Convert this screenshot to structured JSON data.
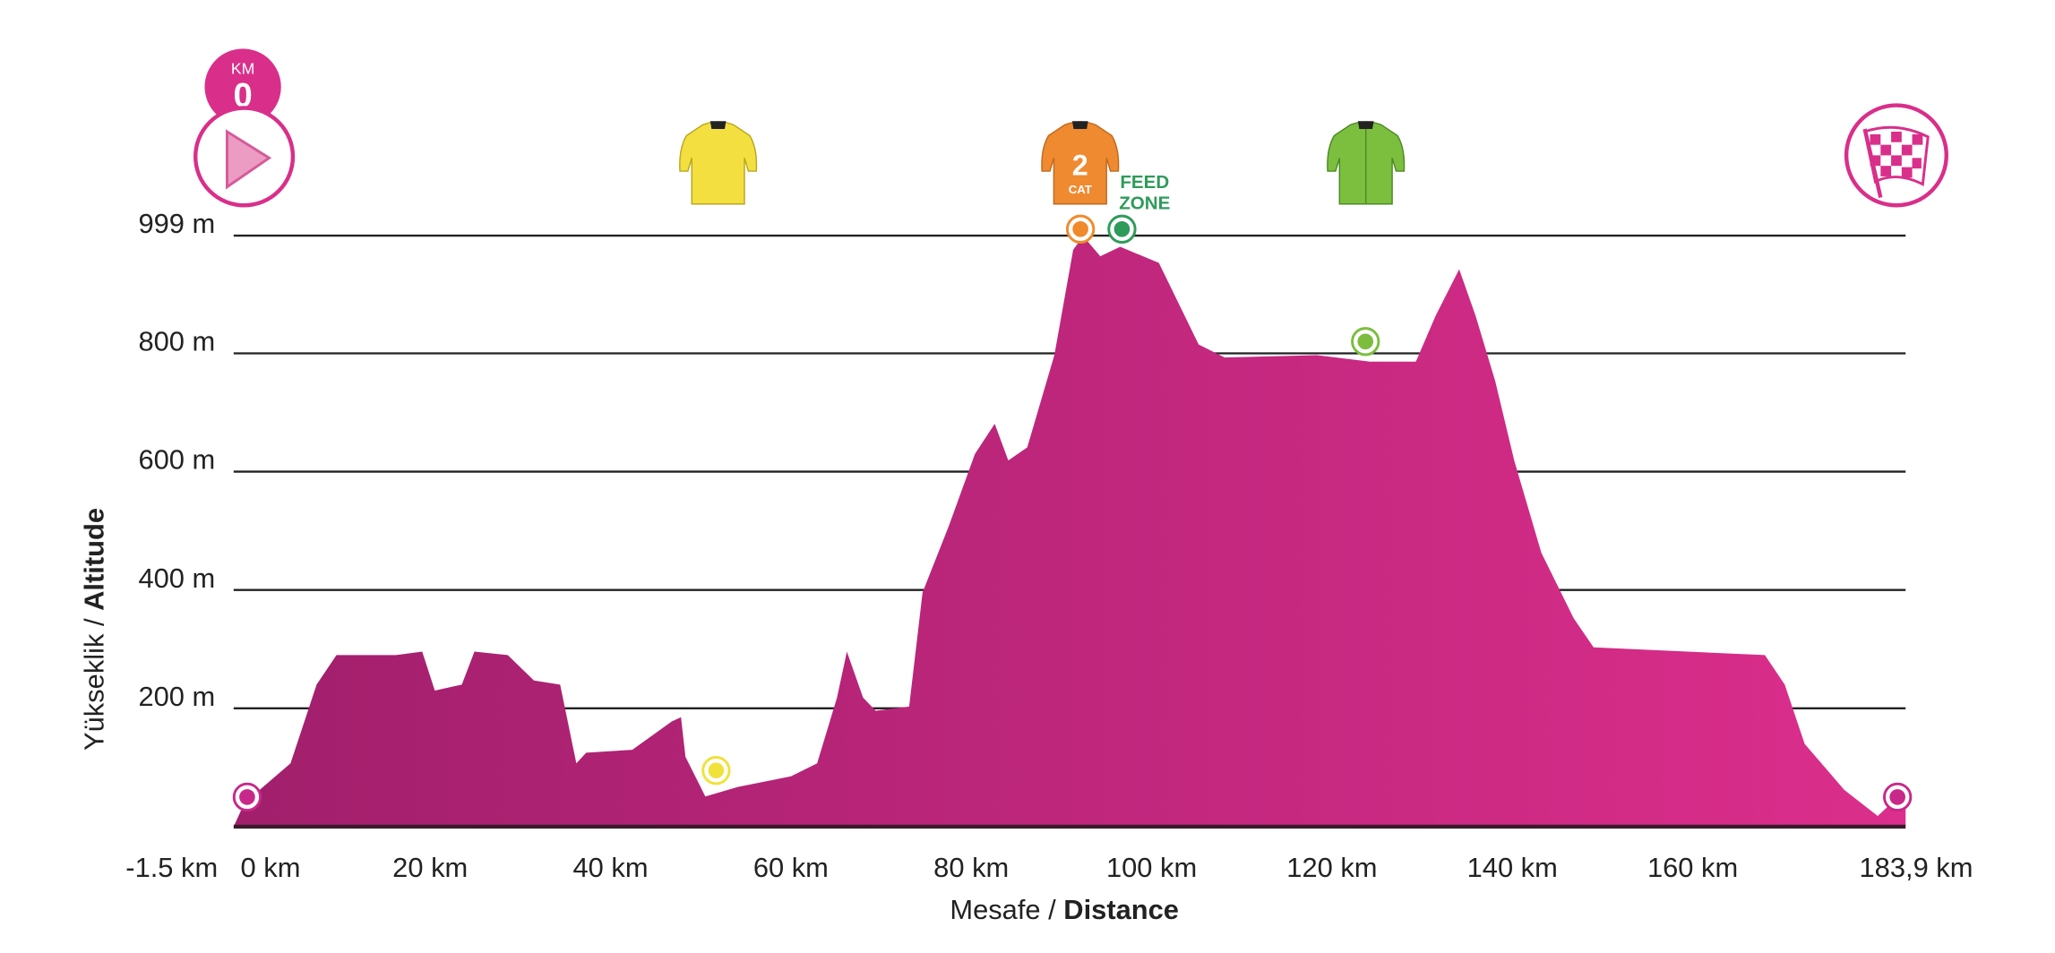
{
  "chart_data": {
    "type": "area",
    "title": "",
    "xlabel": {
      "regular": "Mesafe",
      "sep": " / ",
      "bold": "Distance"
    },
    "ylabel": {
      "regular": "Yükseklik",
      "sep": " / ",
      "bold": "Altitude"
    },
    "xlim": [
      -1.5,
      183.9
    ],
    "ylim": [
      0,
      999
    ],
    "grid": true,
    "y_ticks": [
      {
        "value": 999,
        "label": "999 m"
      },
      {
        "value": 800,
        "label": "800 m"
      },
      {
        "value": 600,
        "label": "600 m"
      },
      {
        "value": 400,
        "label": "400 m"
      },
      {
        "value": 200,
        "label": "200 m"
      }
    ],
    "x_ticks": [
      {
        "value": -1.5,
        "label": "-1.5 km"
      },
      {
        "value": 0,
        "label": "0 km"
      },
      {
        "value": 20,
        "label": "20 km"
      },
      {
        "value": 40,
        "label": "40 km"
      },
      {
        "value": 60,
        "label": "60 km"
      },
      {
        "value": 80,
        "label": "80 km"
      },
      {
        "value": 100,
        "label": "100 km"
      },
      {
        "value": 120,
        "label": "120 km"
      },
      {
        "value": 140,
        "label": "140 km"
      },
      {
        "value": 160,
        "label": "160 km"
      },
      {
        "value": 183.9,
        "label": "183,9 km"
      }
    ],
    "profile": [
      [
        -1.5,
        0
      ],
      [
        -0.3,
        40
      ],
      [
        4.8,
        107
      ],
      [
        7.7,
        240
      ],
      [
        9.9,
        290
      ],
      [
        16.5,
        290
      ],
      [
        19.4,
        296
      ],
      [
        20.8,
        230
      ],
      [
        23.8,
        240
      ],
      [
        25.2,
        296
      ],
      [
        28.9,
        290
      ],
      [
        31.8,
        247
      ],
      [
        34.7,
        240
      ],
      [
        36.5,
        107
      ],
      [
        37.6,
        125
      ],
      [
        42.7,
        130
      ],
      [
        47.1,
        178
      ],
      [
        48.1,
        185
      ],
      [
        48.6,
        118
      ],
      [
        50.8,
        51
      ],
      [
        54.4,
        67
      ],
      [
        60.3,
        85
      ],
      [
        63.2,
        107
      ],
      [
        65.4,
        218
      ],
      [
        66.5,
        296
      ],
      [
        68.3,
        218
      ],
      [
        69.7,
        196
      ],
      [
        73.4,
        203
      ],
      [
        74.9,
        396
      ],
      [
        77.8,
        508
      ],
      [
        80.7,
        630
      ],
      [
        82.9,
        681
      ],
      [
        84.4,
        619
      ],
      [
        86.5,
        641
      ],
      [
        89.5,
        797
      ],
      [
        91.6,
        975
      ],
      [
        92.7,
        998
      ],
      [
        94.6,
        964
      ],
      [
        96.8,
        980
      ],
      [
        101.1,
        953
      ],
      [
        105.5,
        815
      ],
      [
        108.4,
        793
      ],
      [
        118.6,
        797
      ],
      [
        124.5,
        786
      ],
      [
        129.6,
        786
      ],
      [
        131.8,
        864
      ],
      [
        134.4,
        942
      ],
      [
        136.2,
        864
      ],
      [
        138.4,
        753
      ],
      [
        140.5,
        619
      ],
      [
        143.5,
        463
      ],
      [
        147.1,
        352
      ],
      [
        149.3,
        303
      ],
      [
        168.3,
        290
      ],
      [
        170.5,
        240
      ],
      [
        172.7,
        140
      ],
      [
        177.1,
        62
      ],
      [
        180.8,
        18
      ],
      [
        183.9,
        62
      ],
      [
        183.9,
        0
      ]
    ],
    "colors": {
      "fill_start": "#a11f6c",
      "fill_end": "#dc2e8c",
      "grid": "#222222"
    },
    "points": [
      {
        "name": "start-marker",
        "km": 0,
        "alt": 50,
        "color": "#c8288a"
      },
      {
        "name": "intermediate-sprint-marker",
        "km": 52,
        "alt": 95,
        "color": "#f0e23a"
      },
      {
        "name": "kom-marker",
        "km": 92.4,
        "alt": 1010,
        "color": "#f08a2c"
      },
      {
        "name": "feed-zone-marker",
        "km": 97,
        "alt": 1010,
        "color": "#2e9b5a"
      },
      {
        "name": "sprint-points-marker",
        "km": 124,
        "alt": 820,
        "color": "#7cbd3e"
      },
      {
        "name": "finish-marker",
        "km": 183,
        "alt": 50,
        "color": "#c8288a"
      }
    ]
  },
  "icons": {
    "km0": {
      "label_top": "KM",
      "label_value": "0",
      "color": "#d92f8a"
    },
    "kom_jersey": {
      "number": "2",
      "sub": "CAT",
      "color": "#ef8a30"
    },
    "feed_zone": {
      "line1": "FEED",
      "line2": "ZONE",
      "color": "#2e9b5a"
    },
    "yellow_jersey": {
      "color": "#f3e040"
    },
    "green_jersey": {
      "color": "#7cbf3f"
    },
    "finish_flag": {
      "color": "#d92f8a"
    }
  }
}
